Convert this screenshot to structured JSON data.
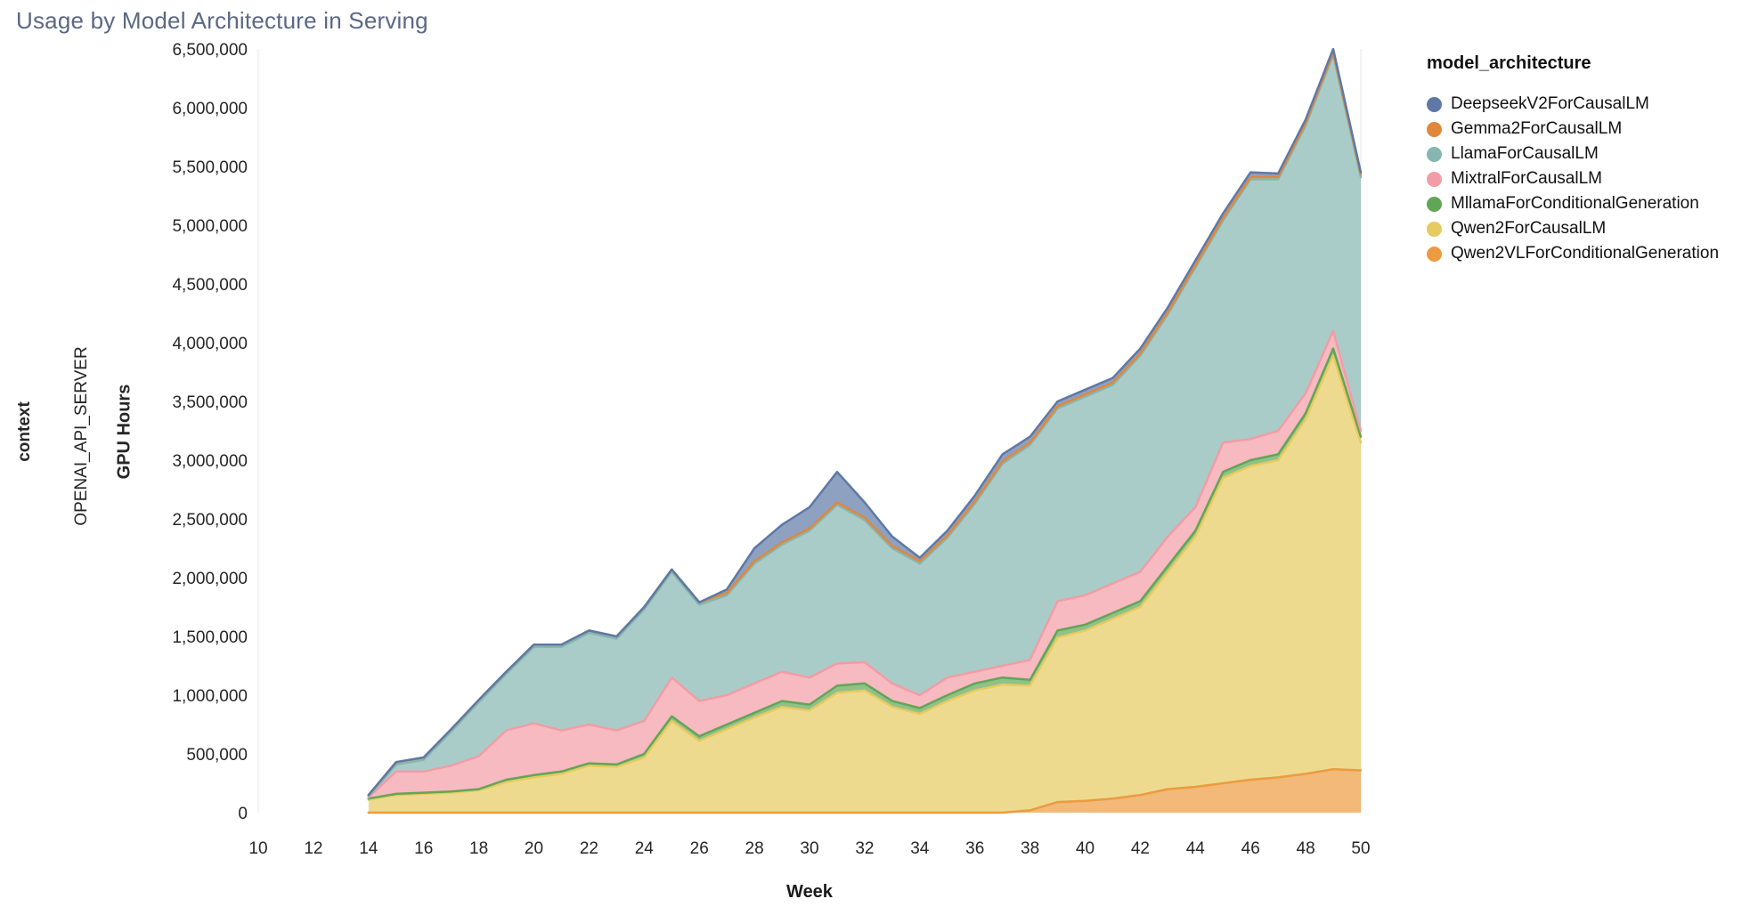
{
  "title": "Usage by Model Architecture in Serving",
  "facet": {
    "context_label": "context",
    "server_label": "OPENAI_API_SERVER"
  },
  "chart_data": {
    "type": "area",
    "stacked": true,
    "title": "Usage by Model Architecture in Serving",
    "xlabel": "Week",
    "ylabel": "GPU Hours",
    "legend_title": "model_architecture",
    "legend_position": "right",
    "grid": false,
    "xlim": [
      10,
      50
    ],
    "ylim": [
      0,
      6500000
    ],
    "x_ticks": [
      10,
      12,
      14,
      16,
      18,
      20,
      22,
      24,
      26,
      28,
      30,
      32,
      34,
      36,
      38,
      40,
      42,
      44,
      46,
      48,
      50
    ],
    "y_ticks": [
      0,
      500000,
      1000000,
      1500000,
      2000000,
      2500000,
      3000000,
      3500000,
      4000000,
      4500000,
      5000000,
      5500000,
      6000000,
      6500000
    ],
    "x": [
      14,
      15,
      16,
      17,
      18,
      19,
      20,
      21,
      22,
      23,
      24,
      25,
      26,
      27,
      28,
      29,
      30,
      31,
      32,
      33,
      34,
      35,
      36,
      37,
      38,
      39,
      40,
      41,
      42,
      43,
      44,
      45,
      46,
      47,
      48,
      49,
      50
    ],
    "stack_order": [
      "Qwen2VLForConditionalGeneration",
      "Qwen2ForCausalLM",
      "MllamaForConditionalGeneration",
      "MixtralForCausalLM",
      "LlamaForCausalLM",
      "Gemma2ForCausalLM",
      "DeepseekV2ForCausalLM"
    ],
    "series": [
      {
        "name": "DeepseekV2ForCausalLM",
        "color": "#5e79a7",
        "values": [
          0,
          0,
          0,
          0,
          0,
          0,
          0,
          0,
          0,
          0,
          0,
          0,
          0,
          30000,
          110000,
          150000,
          180000,
          260000,
          130000,
          80000,
          30000,
          40000,
          50000,
          60000,
          50000,
          40000,
          40000,
          40000,
          40000,
          40000,
          40000,
          40000,
          40000,
          30000,
          30000,
          30000,
          20000
        ]
      },
      {
        "name": "Gemma2ForCausalLM",
        "color": "#e0873c",
        "values": [
          10000,
          20000,
          20000,
          20000,
          20000,
          20000,
          20000,
          20000,
          20000,
          20000,
          20000,
          20000,
          20000,
          20000,
          20000,
          20000,
          20000,
          20000,
          20000,
          20000,
          20000,
          20000,
          20000,
          20000,
          20000,
          20000,
          20000,
          20000,
          20000,
          20000,
          20000,
          20000,
          20000,
          20000,
          20000,
          20000,
          20000
        ]
      },
      {
        "name": "LlamaForCausalLM",
        "color": "#86b6b0",
        "values": [
          10000,
          60000,
          100000,
          290000,
          460000,
          480000,
          650000,
          710000,
          780000,
          780000,
          950000,
          900000,
          820000,
          850000,
          1020000,
          1080000,
          1250000,
          1350000,
          1210000,
          1150000,
          1120000,
          1190000,
          1430000,
          1720000,
          1830000,
          1640000,
          1690000,
          1690000,
          1840000,
          1890000,
          2040000,
          1890000,
          2210000,
          2140000,
          2280000,
          2350000,
          2160000
        ]
      },
      {
        "name": "MixtralForCausalLM",
        "color": "#f29ca5",
        "values": [
          10000,
          190000,
          180000,
          220000,
          280000,
          420000,
          440000,
          350000,
          330000,
          290000,
          280000,
          330000,
          300000,
          250000,
          250000,
          250000,
          230000,
          190000,
          180000,
          150000,
          110000,
          150000,
          100000,
          100000,
          170000,
          250000,
          250000,
          250000,
          250000,
          250000,
          200000,
          250000,
          180000,
          200000,
          170000,
          150000,
          50000
        ]
      },
      {
        "name": "MllamaForConditionalGeneration",
        "color": "#61a656",
        "values": [
          10000,
          10000,
          10000,
          10000,
          10000,
          20000,
          20000,
          20000,
          20000,
          20000,
          30000,
          40000,
          40000,
          40000,
          40000,
          50000,
          50000,
          60000,
          60000,
          50000,
          50000,
          50000,
          60000,
          60000,
          50000,
          60000,
          50000,
          50000,
          50000,
          50000,
          50000,
          50000,
          50000,
          50000,
          50000,
          60000,
          50000
        ]
      },
      {
        "name": "Qwen2ForCausalLM",
        "color": "#e7ca60",
        "values": [
          110000,
          150000,
          160000,
          170000,
          190000,
          260000,
          300000,
          330000,
          400000,
          390000,
          470000,
          780000,
          610000,
          710000,
          810000,
          900000,
          870000,
          1020000,
          1040000,
          900000,
          840000,
          950000,
          1040000,
          1090000,
          1060000,
          1400000,
          1450000,
          1530000,
          1600000,
          1850000,
          2130000,
          2600000,
          2670000,
          2700000,
          3020000,
          3520000,
          2790000
        ]
      },
      {
        "name": "Qwen2VLForConditionalGeneration",
        "color": "#ec9b3f",
        "values": [
          0,
          0,
          0,
          0,
          0,
          0,
          0,
          0,
          0,
          0,
          0,
          0,
          0,
          0,
          0,
          0,
          0,
          0,
          0,
          0,
          0,
          0,
          0,
          0,
          20000,
          90000,
          100000,
          120000,
          150000,
          200000,
          220000,
          250000,
          280000,
          300000,
          330000,
          370000,
          360000
        ]
      }
    ]
  }
}
